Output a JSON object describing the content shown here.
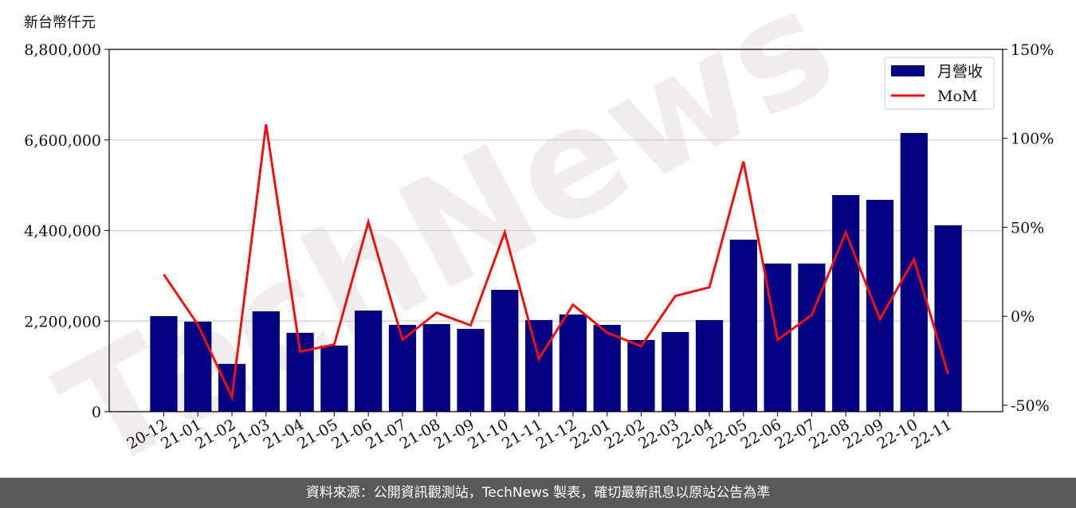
{
  "chart_data": {
    "type": "bar_line",
    "watermark": "TechNews",
    "y_label": "新台幣仟元",
    "source": "資料來源：公開資訊觀測站，TechNews 製表，確切最新訊息以原站公告為準",
    "categories": [
      "20-12",
      "21-01",
      "21-02",
      "21-03",
      "21-04",
      "21-05",
      "21-06",
      "21-07",
      "21-08",
      "21-09",
      "21-10",
      "21-11",
      "21-12",
      "22-01",
      "22-02",
      "22-03",
      "22-04",
      "22-05",
      "22-06",
      "22-07",
      "22-08",
      "22-09",
      "22-10",
      "22-11"
    ],
    "series": [
      {
        "name": "月營收",
        "type": "bar",
        "color": "#000080",
        "values": [
          2321000,
          2186000,
          1160000,
          2437000,
          1915000,
          1605000,
          2456000,
          2108000,
          2127000,
          2011000,
          2959000,
          2224000,
          2360000,
          2108000,
          1741000,
          1934000,
          2224000,
          4178000,
          3597000,
          3597000,
          5261000,
          5145000,
          6769000,
          4526000
        ]
      },
      {
        "name": "MoM",
        "type": "line",
        "color": "#ee1111",
        "axis": "y2",
        "values": [
          23.5,
          -4.7,
          -45.4,
          107.8,
          -19.9,
          -15.9,
          53,
          -13.2,
          2,
          -5.1,
          47.2,
          -23.9,
          6.5,
          -9.2,
          -16.8,
          11.4,
          16.3,
          87,
          -13.2,
          0.7,
          47.2,
          -1.6,
          32,
          -32.4
        ]
      }
    ],
    "ylim": [
      0,
      8800000
    ],
    "yticks": [
      0,
      {
        "value": 2200000,
        "label": "2,200,000"
      },
      {
        "value": 4400000,
        "label": "4,400,000"
      },
      {
        "value": 6600000,
        "label": "6,600,000"
      },
      {
        "value": 8800000,
        "label": "8,800,000"
      }
    ],
    "y2lim": [
      -53.6,
      150
    ],
    "y2ticks": [
      {
        "value": -50,
        "label": "-50%"
      },
      {
        "value": 0,
        "label": "0%"
      },
      {
        "value": 50,
        "label": "50%"
      },
      {
        "value": 100,
        "label": "100%"
      },
      {
        "value": 150,
        "label": "150%"
      }
    ],
    "grid": true,
    "legend": "upper-right"
  }
}
